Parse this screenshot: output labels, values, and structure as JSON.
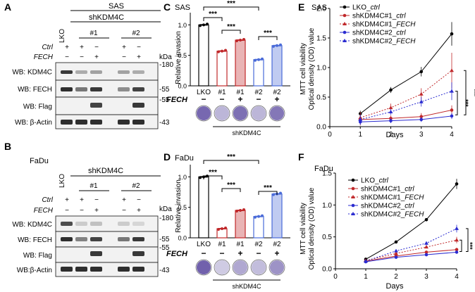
{
  "panels": {
    "A": {
      "letter": "A",
      "cell": "SAS",
      "group": "shKDM4C",
      "lko": "LKO",
      "clone1": "#1",
      "clone2": "#2",
      "ctrl_label": "Ctrl",
      "fech_label": "FECH",
      "ctrl_signs": [
        "+",
        "+",
        "−",
        "+",
        "−"
      ],
      "fech_signs": [
        "−",
        "−",
        "+",
        "−",
        "+"
      ],
      "kda": "kDa",
      "blots": [
        "WB: KDM4C",
        "WB: FECH",
        "WB: Flag",
        "WB: β-Actin"
      ],
      "markers": [
        "-180",
        "-55",
        "-55",
        "-43"
      ]
    },
    "B": {
      "letter": "B",
      "cell": "FaDu",
      "group": "shKDM4C",
      "lko": "LKO",
      "clone1": "#1",
      "clone2": "#2",
      "ctrl_label": "Ctrl",
      "fech_label": "FECH",
      "ctrl_signs": [
        "+",
        "+",
        "−",
        "+",
        "−"
      ],
      "fech_signs": [
        "−",
        "−",
        "+",
        "−",
        "+"
      ],
      "kda": "kDa",
      "blots": [
        "WB: KDM4C",
        "WB: FECH",
        "WB: Flag",
        "WB:β-Actin"
      ],
      "markers": [
        "-180",
        "-55",
        "-55",
        "-43"
      ]
    },
    "C": {
      "letter": "C",
      "cell": "SAS",
      "ylabel": "Relative invasion",
      "yticks": [
        "0.0",
        "0.5",
        "1.0"
      ],
      "categories": [
        "LKO",
        "#1",
        "#1",
        "#2",
        "#2"
      ],
      "fech_label": "FECH",
      "fech_signs": [
        "−",
        "−",
        "+",
        "−",
        "+"
      ],
      "group": "shKDM4C",
      "sig": [
        "***",
        "***",
        "***",
        "***"
      ]
    },
    "D": {
      "letter": "D",
      "cell": "FaDu",
      "ylabel": "Relative invasion",
      "yticks": [
        "0.0",
        "0.5",
        "1.0"
      ],
      "categories": [
        "LKO",
        "#1",
        "#1",
        "#2",
        "#2"
      ],
      "fech_label": "FECH",
      "fech_signs": [
        "−",
        "−",
        "+",
        "−",
        "+"
      ],
      "group": "shKDM4C",
      "sig": [
        "***",
        "***",
        "***",
        "***"
      ]
    },
    "E": {
      "letter": "E",
      "cell": "SAS",
      "ylabel1": "MTT cell viability",
      "ylabel2": "Optical density (OD) value",
      "xlabel": "Days",
      "xticks": [
        "0",
        "1",
        "2",
        "3",
        "4"
      ],
      "yticks": [
        "0.0",
        "0.5",
        "1.0",
        "1.5",
        "2.0"
      ],
      "legend_prefix": [
        "LKO_",
        "shKDM4C#1_",
        "shKDM4C#1_",
        "shKDM4C#2_",
        "shKDM4C#2_"
      ],
      "legend_suffix": [
        "ctrl",
        "ctrl",
        "FECH",
        "ctrl",
        "FECH"
      ],
      "sig": [
        "***",
        "***"
      ]
    },
    "F": {
      "letter": "F",
      "cell": "FaDu",
      "ylabel1": "MTT cell viability",
      "ylabel2": "Optical density (OD) value",
      "xlabel": "Days",
      "xticks": [
        "0",
        "1",
        "2",
        "3",
        "4"
      ],
      "yticks": [
        "0.0",
        "0.5",
        "1.0",
        "1.5"
      ],
      "legend_prefix": [
        "LKO_",
        "shKDM4C#1_",
        "shKDM4C#1_",
        "shKDM4C#2_",
        "shKDM4C#2_"
      ],
      "legend_suffix": [
        "ctrl",
        "ctrl",
        "FECH",
        "ctrl",
        "FECH"
      ],
      "sig": [
        "***",
        "***"
      ]
    }
  },
  "colors": {
    "lko": "#000000",
    "sh1": "#c0282a",
    "sh2": "#2a2bd0",
    "sh2bar": "#4a6bd8"
  },
  "chart_data": [
    {
      "type": "bar",
      "panel": "C",
      "categories": [
        "LKO",
        "#1",
        "#1",
        "#2",
        "#2"
      ],
      "values": [
        1.0,
        0.57,
        0.75,
        0.43,
        0.66
      ],
      "ylim": [
        0,
        1.2
      ]
    },
    {
      "type": "bar",
      "panel": "D",
      "categories": [
        "LKO",
        "#1",
        "#1",
        "#2",
        "#2"
      ],
      "values": [
        1.0,
        0.15,
        0.45,
        0.35,
        0.72
      ],
      "ylim": [
        0,
        1.2
      ]
    },
    {
      "type": "line",
      "panel": "E",
      "x": [
        1,
        2,
        3,
        4
      ],
      "ylim": [
        0,
        2.0
      ],
      "xlim": [
        0,
        4
      ],
      "series": [
        {
          "name": "LKO_ctrl",
          "values": [
            0.22,
            0.62,
            0.93,
            1.57
          ]
        },
        {
          "name": "shKDM4C#1_ctrl",
          "values": [
            0.12,
            0.14,
            0.17,
            0.28
          ]
        },
        {
          "name": "shKDM4C#1_FECH",
          "values": [
            0.15,
            0.32,
            0.55,
            0.95
          ]
        },
        {
          "name": "shKDM4C#2_ctrl",
          "values": [
            0.08,
            0.1,
            0.12,
            0.18
          ]
        },
        {
          "name": "shKDM4C#2_FECH",
          "values": [
            0.12,
            0.25,
            0.42,
            0.6
          ]
        }
      ]
    },
    {
      "type": "line",
      "panel": "F",
      "x": [
        1,
        2,
        3,
        4
      ],
      "ylim": [
        0,
        1.5
      ],
      "xlim": [
        0,
        4
      ],
      "series": [
        {
          "name": "LKO_ctrl",
          "values": [
            0.15,
            0.42,
            0.77,
            1.33
          ]
        },
        {
          "name": "shKDM4C#1_ctrl",
          "values": [
            0.12,
            0.2,
            0.26,
            0.3
          ]
        },
        {
          "name": "shKDM4C#1_FECH",
          "values": [
            0.13,
            0.24,
            0.34,
            0.45
          ]
        },
        {
          "name": "shKDM4C#2_ctrl",
          "values": [
            0.11,
            0.18,
            0.22,
            0.26
          ]
        },
        {
          "name": "shKDM4C#2_FECH",
          "values": [
            0.12,
            0.28,
            0.4,
            0.63
          ]
        }
      ]
    }
  ]
}
